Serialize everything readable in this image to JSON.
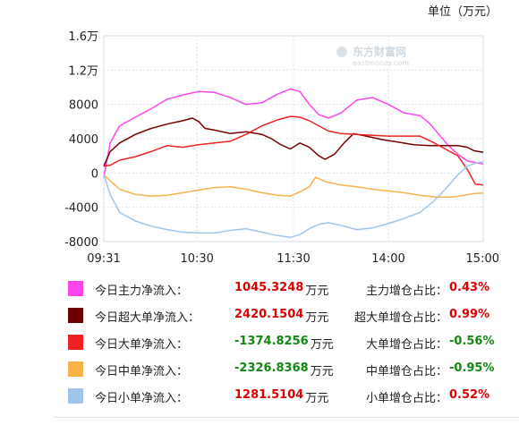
{
  "unit_label": "单位（万元）",
  "watermark": {
    "brand": "东方财富网",
    "domain": "eastmoney.com"
  },
  "chart_data": {
    "type": "line",
    "y_ticks": [
      "1.6万",
      "1.2万",
      "8000",
      "4000",
      "0",
      "-4000",
      "-8000"
    ],
    "y_tick_values": [
      16000,
      12000,
      8000,
      4000,
      0,
      -4000,
      -8000
    ],
    "x_ticks": [
      "09:31",
      "10:30",
      "11:30",
      "14:00",
      "15:00"
    ],
    "x_tick_index": [
      0,
      59,
      120,
      180,
      240
    ],
    "ylim": [
      -8000,
      16000
    ],
    "xlim": [
      0,
      240
    ],
    "grid": true,
    "series": [
      {
        "name": "主力",
        "color": "#ff44ee",
        "points": [
          [
            0,
            -500
          ],
          [
            4,
            3500
          ],
          [
            10,
            5500
          ],
          [
            20,
            6500
          ],
          [
            30,
            7500
          ],
          [
            40,
            8600
          ],
          [
            50,
            9100
          ],
          [
            60,
            9500
          ],
          [
            70,
            9400
          ],
          [
            80,
            8800
          ],
          [
            90,
            8000
          ],
          [
            100,
            8200
          ],
          [
            110,
            9200
          ],
          [
            118,
            9800
          ],
          [
            124,
            9500
          ],
          [
            130,
            8000
          ],
          [
            136,
            6800
          ],
          [
            142,
            6400
          ],
          [
            150,
            7000
          ],
          [
            160,
            8500
          ],
          [
            170,
            8800
          ],
          [
            180,
            8000
          ],
          [
            190,
            7000
          ],
          [
            200,
            6700
          ],
          [
            206,
            5800
          ],
          [
            212,
            4500
          ],
          [
            218,
            3200
          ],
          [
            224,
            2200
          ],
          [
            230,
            1400
          ],
          [
            240,
            1050
          ]
        ]
      },
      {
        "name": "超大单",
        "color": "#7a0000",
        "points": [
          [
            0,
            800
          ],
          [
            4,
            2500
          ],
          [
            10,
            3500
          ],
          [
            20,
            4500
          ],
          [
            30,
            5200
          ],
          [
            40,
            5700
          ],
          [
            50,
            6100
          ],
          [
            56,
            6400
          ],
          [
            60,
            6000
          ],
          [
            64,
            5200
          ],
          [
            70,
            5000
          ],
          [
            80,
            4600
          ],
          [
            90,
            4800
          ],
          [
            100,
            4500
          ],
          [
            106,
            4000
          ],
          [
            112,
            3300
          ],
          [
            118,
            2800
          ],
          [
            124,
            3500
          ],
          [
            130,
            3000
          ],
          [
            136,
            2000
          ],
          [
            140,
            1600
          ],
          [
            146,
            2200
          ],
          [
            152,
            3500
          ],
          [
            158,
            4600
          ],
          [
            166,
            4300
          ],
          [
            176,
            3900
          ],
          [
            186,
            3600
          ],
          [
            196,
            3300
          ],
          [
            206,
            3200
          ],
          [
            216,
            3200
          ],
          [
            224,
            3200
          ],
          [
            230,
            3000
          ],
          [
            234,
            2600
          ],
          [
            240,
            2400
          ]
        ]
      },
      {
        "name": "大单",
        "color": "#ee2222",
        "points": [
          [
            0,
            800
          ],
          [
            4,
            900
          ],
          [
            10,
            1500
          ],
          [
            20,
            1900
          ],
          [
            30,
            2500
          ],
          [
            40,
            3200
          ],
          [
            50,
            3000
          ],
          [
            60,
            3300
          ],
          [
            70,
            3500
          ],
          [
            80,
            3700
          ],
          [
            90,
            4500
          ],
          [
            100,
            5500
          ],
          [
            110,
            6200
          ],
          [
            118,
            6600
          ],
          [
            124,
            6500
          ],
          [
            130,
            6100
          ],
          [
            136,
            5500
          ],
          [
            142,
            4900
          ],
          [
            150,
            4600
          ],
          [
            160,
            4500
          ],
          [
            170,
            4400
          ],
          [
            180,
            4300
          ],
          [
            190,
            4300
          ],
          [
            200,
            4300
          ],
          [
            208,
            3600
          ],
          [
            216,
            2800
          ],
          [
            224,
            2000
          ],
          [
            230,
            400
          ],
          [
            235,
            -1300
          ],
          [
            240,
            -1400
          ]
        ]
      },
      {
        "name": "中单",
        "color": "#f7b24a",
        "points": [
          [
            0,
            -200
          ],
          [
            4,
            -900
          ],
          [
            10,
            -1900
          ],
          [
            20,
            -2500
          ],
          [
            30,
            -2700
          ],
          [
            40,
            -2600
          ],
          [
            50,
            -2300
          ],
          [
            60,
            -2000
          ],
          [
            70,
            -1700
          ],
          [
            80,
            -1600
          ],
          [
            90,
            -1900
          ],
          [
            100,
            -2300
          ],
          [
            110,
            -2600
          ],
          [
            118,
            -2700
          ],
          [
            124,
            -2200
          ],
          [
            130,
            -1600
          ],
          [
            134,
            -500
          ],
          [
            140,
            -1000
          ],
          [
            150,
            -1400
          ],
          [
            160,
            -1600
          ],
          [
            170,
            -1900
          ],
          [
            180,
            -2100
          ],
          [
            190,
            -2300
          ],
          [
            200,
            -2600
          ],
          [
            210,
            -2800
          ],
          [
            220,
            -2800
          ],
          [
            228,
            -2600
          ],
          [
            234,
            -2400
          ],
          [
            240,
            -2350
          ]
        ]
      },
      {
        "name": "小单",
        "color": "#9fc5ea",
        "points": [
          [
            0,
            -200
          ],
          [
            4,
            -2500
          ],
          [
            10,
            -4600
          ],
          [
            20,
            -5600
          ],
          [
            30,
            -6200
          ],
          [
            40,
            -6600
          ],
          [
            50,
            -6900
          ],
          [
            60,
            -7000
          ],
          [
            70,
            -7000
          ],
          [
            80,
            -6700
          ],
          [
            90,
            -6500
          ],
          [
            100,
            -6900
          ],
          [
            110,
            -7300
          ],
          [
            118,
            -7500
          ],
          [
            124,
            -7200
          ],
          [
            130,
            -6500
          ],
          [
            136,
            -6000
          ],
          [
            142,
            -5800
          ],
          [
            150,
            -6100
          ],
          [
            160,
            -6600
          ],
          [
            170,
            -6400
          ],
          [
            180,
            -5900
          ],
          [
            190,
            -5300
          ],
          [
            200,
            -4600
          ],
          [
            208,
            -3400
          ],
          [
            216,
            -1900
          ],
          [
            224,
            -200
          ],
          [
            230,
            800
          ],
          [
            236,
            1200
          ],
          [
            240,
            1280
          ]
        ]
      }
    ]
  },
  "legend": [
    {
      "label": "今日主力净流入：",
      "value": "1045.3248",
      "unit": "万元",
      "ratio_label": "主力增仓占比：",
      "ratio": "0.43%",
      "color": "#ff44ee",
      "value_sign": "pos",
      "ratio_sign": "pos"
    },
    {
      "label": "今日超大单净流入：",
      "value": "2420.1504",
      "unit": "万元",
      "ratio_label": "超大单增仓占比：",
      "ratio": "0.99%",
      "color": "#6b0000",
      "value_sign": "pos",
      "ratio_sign": "pos"
    },
    {
      "label": "今日大单净流入：",
      "value": "-1374.8256",
      "unit": "万元",
      "ratio_label": "大单增仓占比：",
      "ratio": "-0.56%",
      "color": "#ee2222",
      "value_sign": "neg",
      "ratio_sign": "neg"
    },
    {
      "label": "今日中单净流入：",
      "value": "-2326.8368",
      "unit": "万元",
      "ratio_label": "中单增仓占比：",
      "ratio": "-0.95%",
      "color": "#f7b24a",
      "value_sign": "neg",
      "ratio_sign": "neg"
    },
    {
      "label": "今日小单净流入：",
      "value": "1281.5104",
      "unit": "万元",
      "ratio_label": "小单增仓占比：",
      "ratio": "0.52%",
      "color": "#9fc5ea",
      "value_sign": "pos",
      "ratio_sign": "pos"
    }
  ]
}
